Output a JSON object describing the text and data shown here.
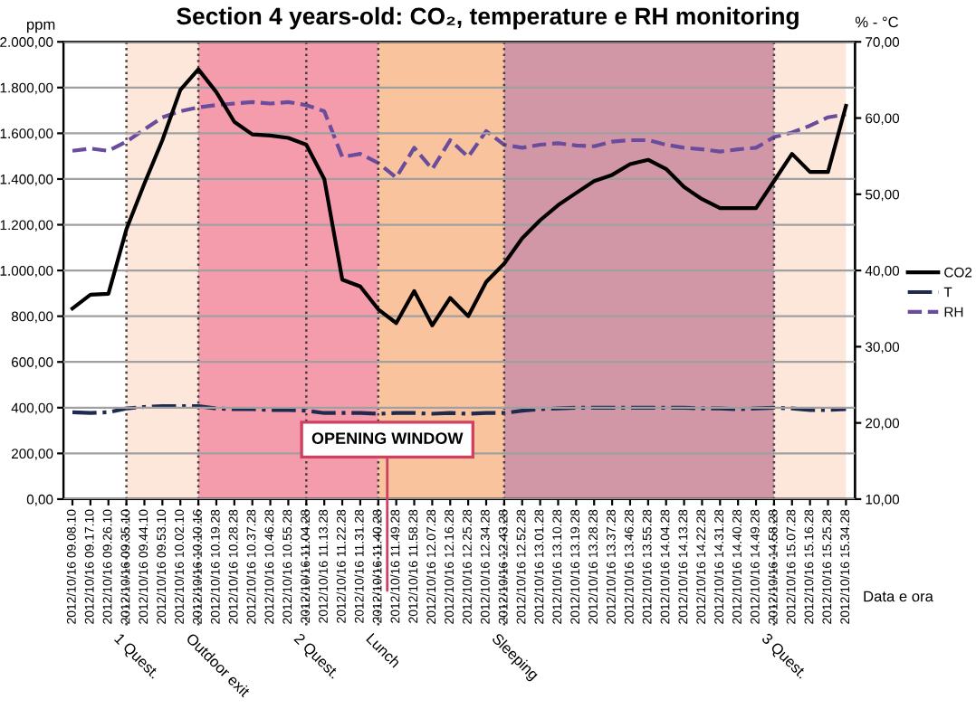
{
  "chart_data": {
    "type": "line",
    "title": "Section 4 years-old: CO₂, temperature e RH monitoring",
    "xlabel": "Data e ora",
    "ylabel": "ppm",
    "y2label": "% - °C",
    "categories": [
      "2012/10/16 09.08.10",
      "2012/10/16 09.17.10",
      "2012/10/16 09.26.10",
      "2012/10/16 09.35.10",
      "2012/10/16 09.44.10",
      "2012/10/16 09.53.10",
      "2012/10/16 10.02.10",
      "2012/10/16 10.10.16",
      "2012/10/16 10.19.28",
      "2012/10/16 10.28.28",
      "2012/10/16 10.37.28",
      "2012/10/16 10.46.28",
      "2012/10/16 10.55.28",
      "2012/10/16 11.04.28",
      "2012/10/16 11.13.28",
      "2012/10/16 11.22.28",
      "2012/10/16 11.31.28",
      "2012/10/16 11.40.28",
      "2012/10/16 11.49.28",
      "2012/10/16 11.58.28",
      "2012/10/16 12.07.28",
      "2012/10/16 12.16.28",
      "2012/10/16 12.25.28",
      "2012/10/16 12.34.28",
      "2012/10/16 12.43.28",
      "2012/10/16 12.52.28",
      "2012/10/16 13.01.28",
      "2012/10/16 13.10.28",
      "2012/10/16 13.19.28",
      "2012/10/16 13.28.28",
      "2012/10/16 13.37.28",
      "2012/10/16 13.46.28",
      "2012/10/16 13.55.28",
      "2012/10/16 14.04.28",
      "2012/10/16 14.13.28",
      "2012/10/16 14.22.28",
      "2012/10/16 14.31.28",
      "2012/10/16 14.40.28",
      "2012/10/16 14.49.28",
      "2012/10/16 14.58.28",
      "2012/10/16 15.07.28",
      "2012/10/16 15.16.28",
      "2012/10/16 15.25.28",
      "2012/10/16 15.34.28"
    ],
    "series": [
      {
        "name": "CO2",
        "color": "#000000",
        "line_style": "solid",
        "values": [
          834,
          894,
          898,
          1180,
          1380,
          1570,
          1790,
          1880,
          1780,
          1650,
          1595,
          1590,
          1580,
          1550,
          1400,
          960,
          930,
          830,
          770,
          910,
          760,
          880,
          800,
          950,
          1030,
          1141,
          1220,
          1286,
          1339,
          1391,
          1418,
          1465,
          1484,
          1444,
          1365,
          1312,
          1273,
          1273,
          1273,
          1391,
          1510,
          1431,
          1431,
          1720
        ]
      },
      {
        "name": "T",
        "color": "#1f2a50",
        "line_style": "dashdot",
        "axis": "y2",
        "values": [
          21.4,
          21.3,
          21.4,
          21.9,
          22.1,
          22.2,
          22.2,
          22.2,
          21.9,
          21.8,
          21.8,
          21.7,
          21.7,
          21.6,
          21.3,
          21.3,
          21.3,
          21.2,
          21.3,
          21.3,
          21.2,
          21.3,
          21.2,
          21.3,
          21.3,
          21.6,
          21.8,
          21.9,
          22.0,
          22.0,
          22.0,
          22.0,
          22.0,
          22.0,
          22.0,
          21.9,
          21.9,
          21.8,
          21.9,
          22.0,
          21.9,
          21.7,
          21.7,
          21.8
        ]
      },
      {
        "name": "RH",
        "color": "#6a4c9c",
        "line_style": "dashed",
        "axis": "y2",
        "values": [
          55.7,
          56.0,
          55.7,
          56.9,
          58.5,
          60.1,
          60.9,
          61.4,
          61.7,
          61.9,
          62.1,
          61.9,
          62.1,
          61.7,
          60.9,
          54.9,
          55.3,
          54.1,
          52.2,
          56.1,
          53.3,
          57.1,
          54.9,
          58.3,
          56.5,
          56.1,
          56.5,
          56.7,
          56.4,
          56.3,
          56.9,
          57.1,
          57.1,
          56.5,
          56.1,
          55.9,
          55.6,
          55.9,
          56.1,
          57.5,
          58.1,
          59.0,
          60.1,
          60.5
        ]
      }
    ],
    "ylim": [
      0,
      2000
    ],
    "yticks": [
      {
        "value": 0,
        "label": "0,00"
      },
      {
        "value": 200,
        "label": "200,00"
      },
      {
        "value": 400,
        "label": "400,00"
      },
      {
        "value": 600,
        "label": "600,00"
      },
      {
        "value": 800,
        "label": "800,00"
      },
      {
        "value": 1000,
        "label": "1.000,00"
      },
      {
        "value": 1200,
        "label": "1.200,00"
      },
      {
        "value": 1400,
        "label": "1.400,00"
      },
      {
        "value": 1600,
        "label": "1.600,00"
      },
      {
        "value": 1800,
        "label": "1.800,00"
      },
      {
        "value": 2000,
        "label": "2.000,00"
      }
    ],
    "y2lim": [
      10,
      70
    ],
    "y2ticks": [
      {
        "value": 10,
        "label": "10,00"
      },
      {
        "value": 20,
        "label": "20,00"
      },
      {
        "value": 30,
        "label": "30,00"
      },
      {
        "value": 40,
        "label": "40,00"
      },
      {
        "value": 50,
        "label": "50,00"
      },
      {
        "value": 60,
        "label": "60,00"
      },
      {
        "value": 70,
        "label": "70,00"
      }
    ],
    "grid": "y",
    "legend": "right",
    "bands": [
      {
        "axis": "x",
        "from": "2012/10/16 09.35.10",
        "to": "2012/10/16 10.10.16",
        "color": "#fbe3d3"
      },
      {
        "axis": "x",
        "from": "2012/10/16 10.10.16",
        "to": "2012/10/16 11.40.28",
        "color": "#f28b9d"
      },
      {
        "axis": "x",
        "from": "2012/10/16 11.40.28",
        "to": "2012/10/16 12.43.28",
        "color": "#f7b98c"
      },
      {
        "axis": "x",
        "from": "2012/10/16 12.43.28",
        "to": "2012/10/16 14.58.28",
        "color": "#c98597"
      },
      {
        "axis": "x",
        "from": "2012/10/16 14.58.28",
        "to": "2012/10/16 15.34.28",
        "color": "#fbe3d3"
      }
    ],
    "ref_lines": [
      {
        "axis": "x",
        "value": "2012/10/16 09.35.10",
        "label": "1 Quest.",
        "color": "#404040",
        "line_style": "dotted"
      },
      {
        "axis": "x",
        "value": "2012/10/16 10.10.16",
        "label": "Outdoor exit",
        "color": "#404040",
        "line_style": "dotted"
      },
      {
        "axis": "x",
        "value": "2012/10/16 11.04.28",
        "label": "2 Quest.",
        "color": "#404040",
        "line_style": "dotted"
      },
      {
        "axis": "x",
        "value": "2012/10/16 11.40.28",
        "label": "Lunch",
        "color": "#404040",
        "line_style": "dotted"
      },
      {
        "axis": "x",
        "value": "2012/10/16 12.43.28",
        "label": "Sleeping",
        "color": "#404040",
        "line_style": "dotted"
      },
      {
        "axis": "x",
        "value": "2012/10/16 14.58.28",
        "label": "3 Quest.",
        "color": "#404040",
        "line_style": "dotted"
      }
    ],
    "annotations": [
      "OPENING WINDOW"
    ]
  }
}
